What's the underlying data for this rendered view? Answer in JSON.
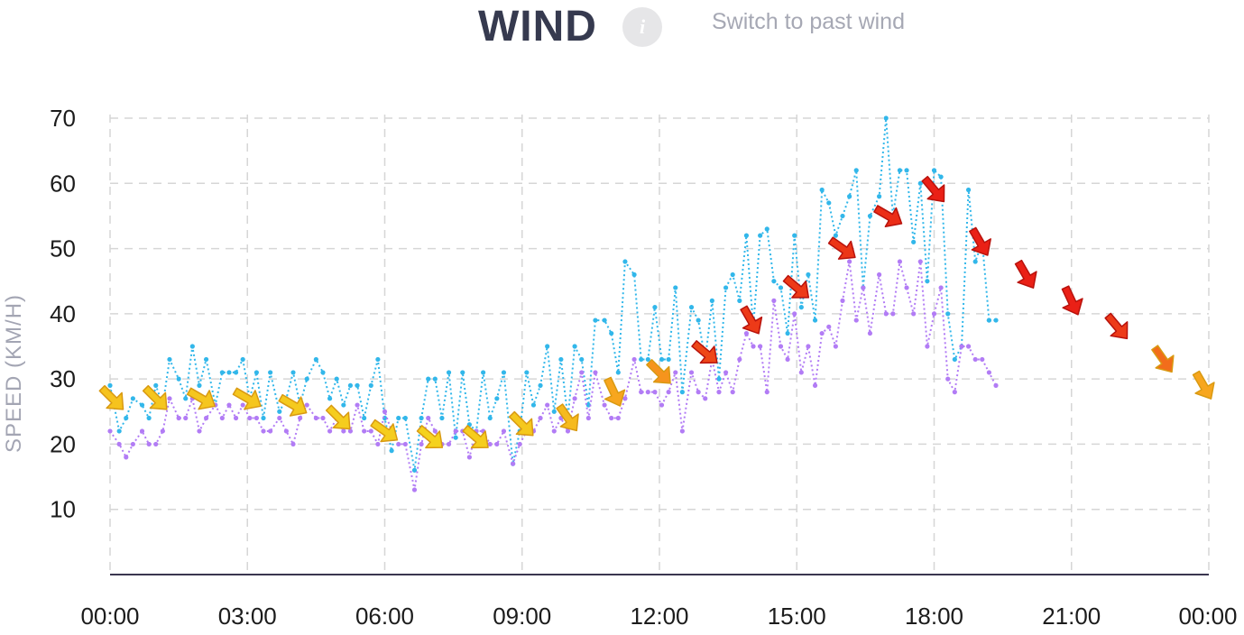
{
  "header": {
    "title": "WIND",
    "info_icon_glyph": "i",
    "switch_link": "Switch to past wind"
  },
  "colors": {
    "gust": "#32b7ea",
    "speed": "#b27cf5",
    "grid": "#d6d6d6",
    "baseline": "#3a3650",
    "arrow_low": "#f5d21e",
    "arrow_mid": "#f7a11e",
    "arrow_high": "#ea2016"
  },
  "chart_data": {
    "type": "line",
    "title": "",
    "xlabel": "",
    "ylabel": "SPEED (KM/H)",
    "ylim": [
      0,
      70
    ],
    "yticks": [
      10,
      20,
      30,
      40,
      50,
      60,
      70
    ],
    "xlim": [
      0,
      24
    ],
    "xticks": [
      "00:00",
      "03:00",
      "06:00",
      "09:00",
      "12:00",
      "15:00",
      "18:00",
      "21:00",
      "00:00"
    ],
    "grid": true,
    "series": [
      {
        "key": "gust",
        "style": "dotted",
        "x": [
          0,
          0.2,
          0.35,
          0.5,
          0.7,
          0.85,
          1.0,
          1.15,
          1.3,
          1.5,
          1.65,
          1.8,
          1.95,
          2.1,
          2.3,
          2.45,
          2.6,
          2.75,
          2.9,
          3.05,
          3.2,
          3.35,
          3.5,
          3.7,
          3.85,
          4.0,
          4.15,
          4.3,
          4.5,
          4.65,
          4.8,
          4.95,
          5.1,
          5.25,
          5.4,
          5.55,
          5.7,
          5.85,
          6.0,
          6.15,
          6.3,
          6.45,
          6.65,
          6.8,
          6.95,
          7.1,
          7.25,
          7.4,
          7.55,
          7.7,
          7.85,
          8.0,
          8.15,
          8.3,
          8.45,
          8.6,
          8.8,
          8.95,
          9.1,
          9.25,
          9.4,
          9.55,
          9.7,
          9.85,
          10.0,
          10.15,
          10.3,
          10.45,
          10.6,
          10.8,
          10.95,
          11.1,
          11.25,
          11.45,
          11.6,
          11.75,
          11.9,
          12.05,
          12.2,
          12.35,
          12.5,
          12.7,
          12.85,
          13.0,
          13.15,
          13.3,
          13.45,
          13.6,
          13.75,
          13.9,
          14.05,
          14.2,
          14.35,
          14.5,
          14.65,
          14.8,
          14.95,
          15.1,
          15.25,
          15.4,
          15.55,
          15.7,
          15.85,
          16.0,
          16.15,
          16.3,
          16.45,
          16.6,
          16.8,
          16.95,
          17.1,
          17.25,
          17.4,
          17.55,
          17.7,
          17.85,
          18.0,
          18.15,
          18.3,
          18.45,
          18.6,
          18.75,
          18.9,
          19.05,
          19.2
        ],
        "values": [
          29,
          22,
          24,
          27,
          26,
          24,
          29,
          26,
          33,
          30,
          27,
          35,
          29,
          33,
          26,
          31,
          31,
          31,
          33,
          27,
          31,
          24,
          31,
          25,
          27,
          31,
          26,
          30,
          33,
          31,
          27,
          30,
          26,
          29,
          29,
          24,
          29,
          33,
          24,
          19,
          24,
          24,
          16,
          24,
          30,
          30,
          24,
          31,
          21,
          31,
          23,
          22,
          31,
          24,
          27,
          31,
          17,
          22,
          31,
          26,
          29,
          35,
          25,
          33,
          24,
          35,
          33,
          26,
          39,
          39,
          37,
          31,
          48,
          46,
          33,
          33,
          41,
          33,
          33,
          44,
          28,
          41,
          39,
          33,
          42,
          30,
          44,
          46,
          42,
          52,
          38,
          52,
          53,
          45,
          44,
          37,
          52,
          41,
          46,
          39,
          59,
          57,
          52,
          55,
          58,
          62,
          44,
          55,
          58,
          70,
          55,
          62,
          62,
          51,
          60,
          45,
          62,
          61,
          40,
          33,
          35,
          59,
          48,
          51,
          39
        ],
        "tail_x": [
          19.2,
          19.35
        ],
        "tail_values": [
          39,
          39
        ]
      },
      {
        "key": "speed",
        "style": "dotted",
        "x": [
          0,
          0.2,
          0.35,
          0.5,
          0.7,
          0.85,
          1.0,
          1.15,
          1.3,
          1.5,
          1.65,
          1.8,
          1.95,
          2.1,
          2.3,
          2.45,
          2.6,
          2.75,
          2.9,
          3.05,
          3.2,
          3.35,
          3.5,
          3.7,
          3.85,
          4.0,
          4.15,
          4.3,
          4.5,
          4.65,
          4.8,
          4.95,
          5.1,
          5.25,
          5.4,
          5.55,
          5.7,
          5.85,
          6.0,
          6.15,
          6.3,
          6.45,
          6.65,
          6.8,
          6.95,
          7.1,
          7.25,
          7.4,
          7.55,
          7.7,
          7.85,
          8.0,
          8.15,
          8.3,
          8.45,
          8.6,
          8.8,
          8.95,
          9.1,
          9.25,
          9.4,
          9.55,
          9.7,
          9.85,
          10.0,
          10.15,
          10.3,
          10.45,
          10.6,
          10.8,
          10.95,
          11.1,
          11.25,
          11.45,
          11.6,
          11.75,
          11.9,
          12.05,
          12.2,
          12.35,
          12.5,
          12.7,
          12.85,
          13.0,
          13.15,
          13.3,
          13.45,
          13.6,
          13.75,
          13.9,
          14.05,
          14.2,
          14.35,
          14.5,
          14.65,
          14.8,
          14.95,
          15.1,
          15.25,
          15.4,
          15.55,
          15.7,
          15.85,
          16.0,
          16.15,
          16.3,
          16.45,
          16.6,
          16.8,
          16.95,
          17.1,
          17.25,
          17.4,
          17.55,
          17.7,
          17.85,
          18.0,
          18.15,
          18.3,
          18.45,
          18.6,
          18.75,
          18.9,
          19.05,
          19.2,
          19.35
        ],
        "values": [
          22,
          20,
          18,
          20,
          22,
          20,
          20,
          22,
          27,
          24,
          24,
          27,
          22,
          24,
          26,
          24,
          26,
          24,
          26,
          24,
          24,
          22,
          22,
          24,
          22,
          20,
          24,
          26,
          24,
          24,
          22,
          24,
          22,
          22,
          26,
          22,
          22,
          20,
          25,
          22,
          20,
          20,
          13,
          20,
          24,
          22,
          20,
          20,
          22,
          22,
          18,
          22,
          22,
          20,
          20,
          22,
          17,
          20,
          22,
          22,
          24,
          26,
          22,
          24,
          22,
          27,
          31,
          24,
          31,
          26,
          24,
          24,
          27,
          33,
          28,
          28,
          28,
          26,
          28,
          31,
          22,
          31,
          28,
          27,
          33,
          28,
          31,
          28,
          33,
          37,
          35,
          35,
          28,
          42,
          35,
          33,
          40,
          31,
          35,
          29,
          37,
          38,
          35,
          42,
          48,
          39,
          44,
          37,
          46,
          40,
          40,
          48,
          44,
          40,
          48,
          35,
          40,
          44,
          30,
          28,
          35,
          35,
          33,
          33,
          31,
          29
        ]
      }
    ],
    "direction_arrows": {
      "x": [
        0.05,
        1.0,
        2.0,
        3.0,
        4.0,
        5.0,
        6.0,
        7.0,
        8.0,
        9.0,
        10.0,
        11.0,
        12.0,
        13.0,
        14.0,
        15.0,
        16.0,
        17.0,
        18.0,
        19.0,
        20.0,
        21.0,
        22.0,
        23.0,
        24.0
      ],
      "speed": [
        27,
        27,
        27,
        27,
        26,
        24,
        22,
        21,
        21,
        23,
        24,
        28,
        31,
        34,
        39,
        44,
        50,
        55,
        59,
        51,
        46,
        42,
        38,
        33,
        29
      ],
      "bearing_deg": [
        -45,
        -45,
        -30,
        -30,
        -30,
        -45,
        -35,
        -40,
        -40,
        -45,
        -55,
        -65,
        -45,
        -40,
        -60,
        -40,
        -35,
        -30,
        -50,
        -60,
        -60,
        -65,
        -50,
        -55,
        -60
      ],
      "intensity": [
        0.15,
        0.12,
        0.12,
        0.12,
        0.08,
        0.05,
        0.05,
        0.0,
        0.05,
        0.1,
        0.25,
        0.45,
        0.55,
        0.85,
        0.9,
        0.9,
        0.92,
        0.95,
        1.0,
        1.0,
        1.0,
        1.0,
        0.9,
        0.7,
        0.45
      ]
    }
  }
}
